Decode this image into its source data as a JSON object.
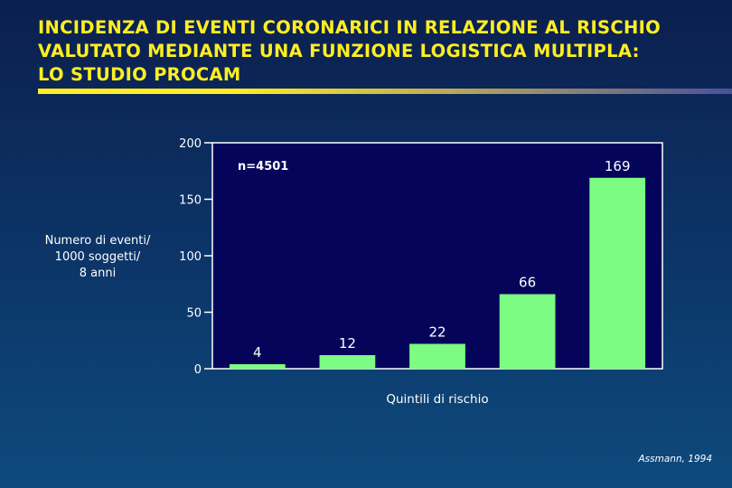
{
  "title": {
    "lines": [
      "INCIDENZA DI EVENTI CORONARICI IN RELAZIONE AL RISCHIO",
      "VALUTATO MEDIANTE UNA FUNZIONE LOGISTICA MULTIPLA:",
      "LO STUDIO PROCAM"
    ]
  },
  "credit": "Assmann, 1994",
  "colors": {
    "title": "#ffee22",
    "bar": "#7cfc82",
    "plot_background": "#04055a",
    "axis": "#ffffff"
  },
  "chart_data": {
    "type": "bar",
    "title": "",
    "annotation": "n=4501",
    "xlabel": "Quintili di rischio",
    "ylabel_lines": [
      "Numero di eventi/",
      "1000 soggetti/",
      "8 anni"
    ],
    "categories": [
      "",
      "",
      "",
      "",
      ""
    ],
    "values": [
      4,
      12,
      22,
      66,
      169
    ],
    "data_labels": [
      "4",
      "12",
      "22",
      "66",
      "169"
    ],
    "ylim": [
      0,
      200
    ],
    "yticks": [
      0,
      50,
      100,
      150,
      200
    ],
    "grid": false,
    "legend": "none"
  }
}
